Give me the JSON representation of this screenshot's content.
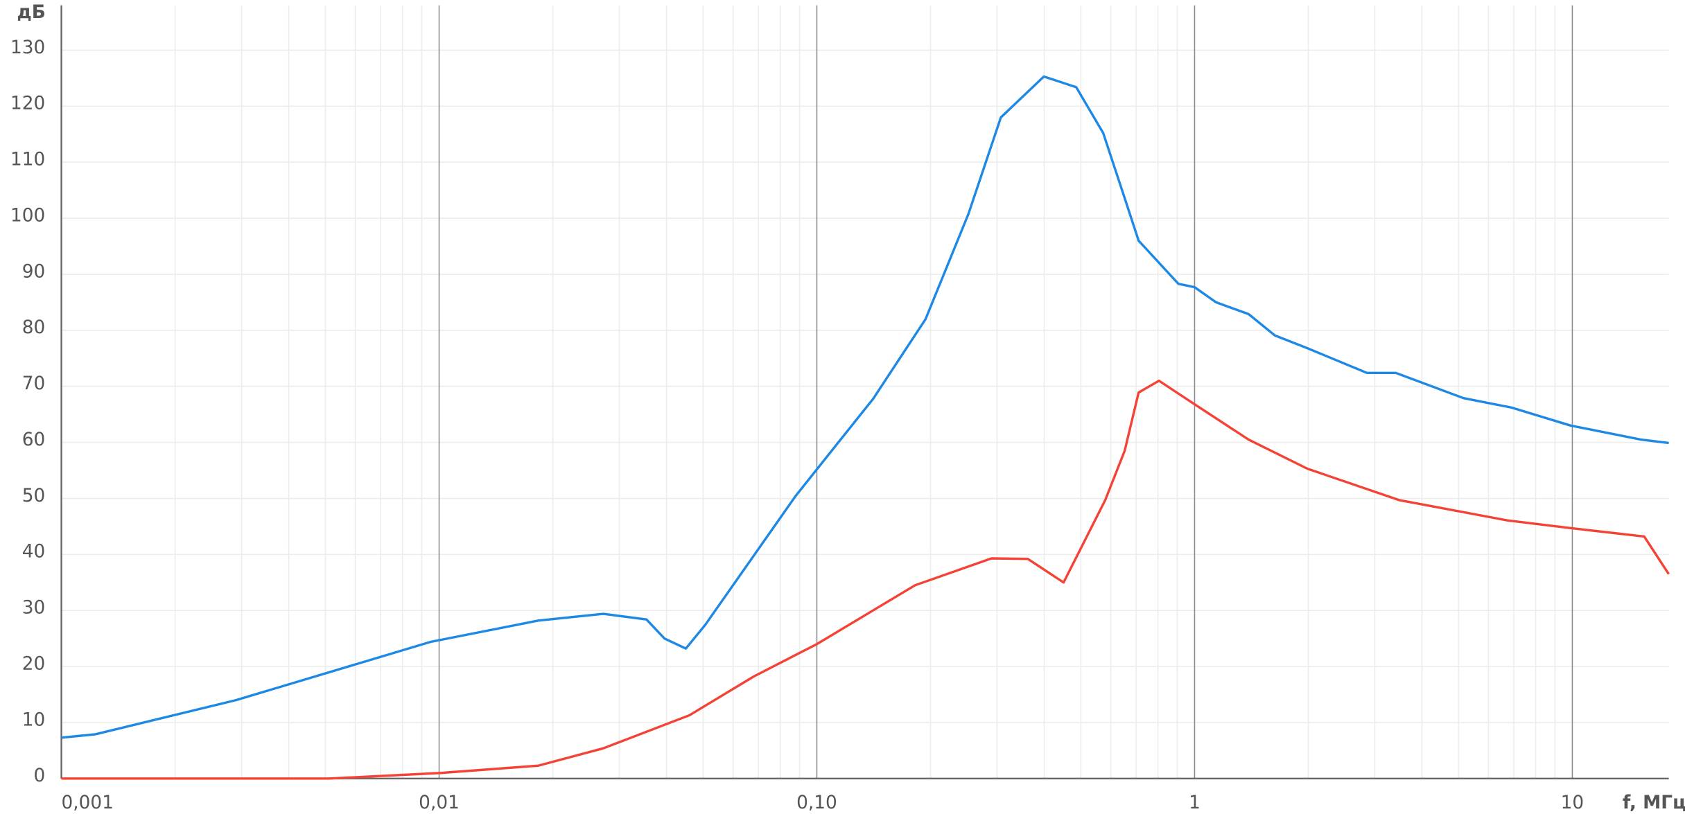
{
  "chart_data": {
    "type": "line",
    "y_label": "дБ",
    "x_label": "f, МГц",
    "x_scale": "log",
    "grid": true,
    "minor_grid": true,
    "xlim": [
      0.001,
      18
    ],
    "ylim": [
      0,
      138
    ],
    "xticks": [
      {
        "value": 0.001,
        "label": "0,001"
      },
      {
        "value": 0.01,
        "label": "0,01"
      },
      {
        "value": 0.1,
        "label": "0,10"
      },
      1,
      10
    ],
    "yticks": [
      0,
      10,
      20,
      30,
      40,
      50,
      60,
      70,
      80,
      90,
      100,
      110,
      120,
      130
    ],
    "series": [
      {
        "color": "#1e88e5",
        "x": [
          0.001,
          0.00123,
          0.0029,
          0.0095,
          0.0183,
          0.0272,
          0.0354,
          0.0395,
          0.045,
          0.0506,
          0.088,
          0.141,
          0.194,
          0.252,
          0.307,
          0.399,
          0.486,
          0.573,
          0.653,
          0.711,
          0.906,
          1,
          1.14,
          1.39,
          1.63,
          1.99,
          2.86,
          3.41,
          5.15,
          6.92,
          9.9,
          15.2,
          18
        ],
        "values": [
          7.3,
          7.9,
          14,
          24.4,
          28.2,
          29.4,
          28.4,
          25,
          23.2,
          27.4,
          50.5,
          67.8,
          82,
          100.8,
          118,
          125.3,
          123.4,
          115.2,
          103.6,
          96,
          88.3,
          87.7,
          85,
          82.9,
          79.1,
          76.8,
          72.4,
          72.4,
          67.9,
          66.2,
          63,
          60.5,
          59.9
        ]
      },
      {
        "color": "#f44336",
        "x": [
          0.001,
          0.0051,
          0.0101,
          0.0183,
          0.0272,
          0.046,
          0.068,
          0.1,
          0.182,
          0.29,
          0.362,
          0.45,
          0.58,
          0.653,
          0.711,
          0.805,
          1,
          1.39,
          1.99,
          3.48,
          6.7,
          9.9,
          15.5,
          18
        ],
        "values": [
          0,
          0,
          1,
          2.3,
          5.4,
          11.3,
          18.2,
          24,
          34.5,
          39.3,
          39.2,
          35,
          49.7,
          58.5,
          68.9,
          71,
          66.8,
          60.5,
          55.3,
          49.7,
          46.1,
          44.7,
          43.2,
          36.5
        ]
      }
    ]
  }
}
